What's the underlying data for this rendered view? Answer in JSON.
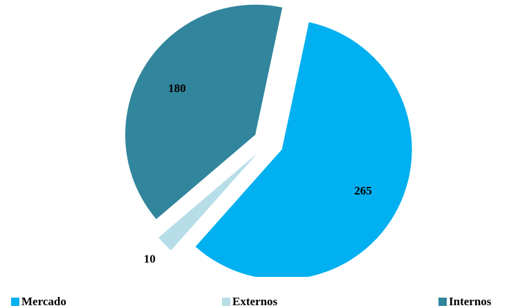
{
  "chart_data": {
    "type": "pie",
    "title": "",
    "categories": [
      "Mercado",
      "Externos",
      "Internos"
    ],
    "values": [
      265,
      10,
      180
    ],
    "colors": [
      "#00B0F0",
      "#B7DEE8",
      "#31859C"
    ],
    "exploded": true,
    "legend_position": "bottom",
    "data_labels": [
      "265",
      "10",
      "180"
    ]
  },
  "legend": {
    "items": [
      {
        "label": "Mercado",
        "color": "#00B0F0"
      },
      {
        "label": "Externos",
        "color": "#B7DEE8"
      },
      {
        "label": "Internos",
        "color": "#31859C"
      }
    ]
  }
}
